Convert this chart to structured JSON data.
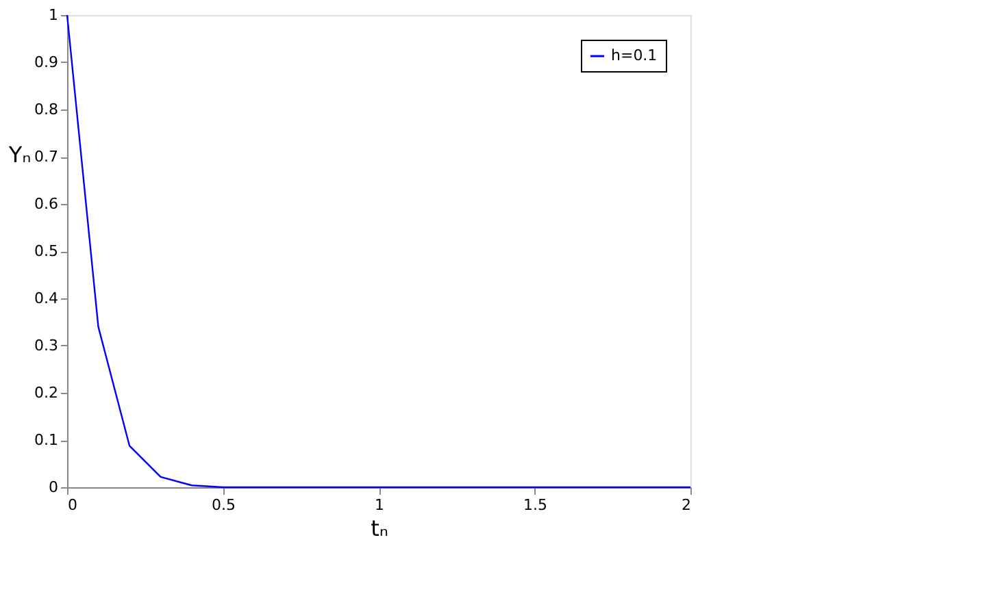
{
  "chart_data": {
    "type": "line",
    "xlabel": "tₙ",
    "ylabel": "Yₙ",
    "x": [
      0,
      0.1,
      0.2,
      0.3,
      0.4,
      0.5,
      0.6,
      0.7,
      0.8,
      0.9,
      1.0,
      1.1,
      1.2,
      1.3,
      1.4,
      1.5,
      1.6,
      1.7,
      1.8,
      1.9,
      2.0
    ],
    "series": [
      {
        "name": "h=0.1",
        "color": "#0000ff",
        "values": [
          1,
          0.34,
          0.088,
          0.022,
          0.004,
          0,
          0,
          0,
          0,
          0,
          0,
          0,
          0,
          0,
          0,
          0,
          0,
          0,
          0,
          0,
          0
        ]
      }
    ],
    "xlim": [
      0,
      2
    ],
    "xticks": [
      0,
      0.5,
      1,
      1.5,
      2
    ],
    "ylim": [
      0,
      1
    ],
    "yticks": [
      0,
      0.1,
      0.2,
      0.3,
      0.4,
      0.5,
      0.6,
      0.7,
      0.8,
      0.9,
      1
    ],
    "grid": false,
    "legend": "top right",
    "line_style": "solid",
    "marker": "none"
  }
}
